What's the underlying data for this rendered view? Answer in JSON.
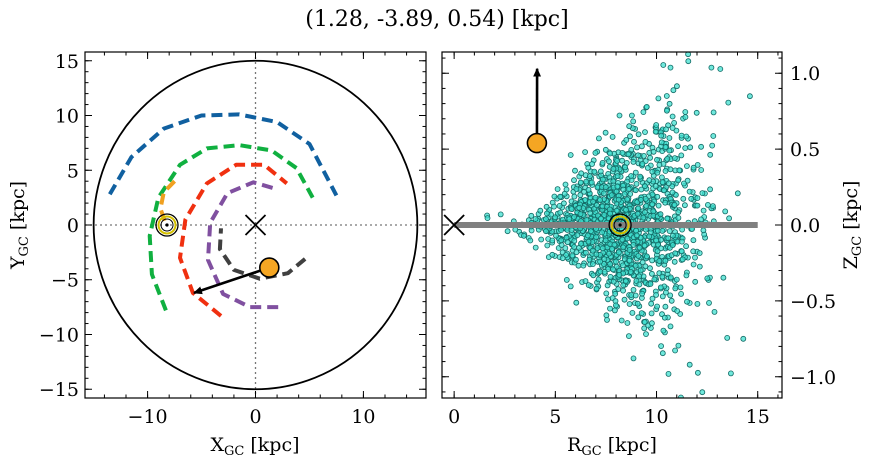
{
  "title": "(1.28, -3.89, 0.54) [kpc]",
  "chart_data": [
    {
      "type": "scatter",
      "panel": "left",
      "xlabel": "X",
      "xlabel_sub": "GC",
      "xlabel_unit": " [kpc]",
      "ylabel": "Y",
      "ylabel_sub": "GC",
      "ylabel_unit": " [kpc]",
      "xlim": [
        -15.8,
        15.8
      ],
      "ylim": [
        -15.8,
        15.8
      ],
      "xticks": [
        -10,
        0,
        10
      ],
      "yticks": [
        -15,
        -10,
        -5,
        0,
        5,
        10,
        15
      ],
      "xtick_labels": [
        "−10",
        "0",
        "10"
      ],
      "ytick_labels": [
        "−15",
        "−10",
        "−5",
        "0",
        "5",
        "10",
        "15"
      ],
      "boundary_circle_radius": 15,
      "galactic_center": [
        0,
        0
      ],
      "sun": [
        -8.2,
        0
      ],
      "object": [
        1.28,
        -3.89
      ],
      "velocity_arrow_end": [
        -5.7,
        -6.2
      ],
      "spiral_arms": [
        {
          "color": "#1060a0",
          "points": [
            [
              -13.5,
              2.8
            ],
            [
              -11.5,
              6.2
            ],
            [
              -8.5,
              8.8
            ],
            [
              -5,
              10.0
            ],
            [
              -1.5,
              10.1
            ],
            [
              2,
              9.4
            ],
            [
              5,
              7.4
            ],
            [
              7.5,
              2.7
            ]
          ]
        },
        {
          "color": "#10b040",
          "points": [
            [
              -8.3,
              -7.8
            ],
            [
              -9.6,
              -4.5
            ],
            [
              -9.8,
              -1
            ],
            [
              -9,
              2.5
            ],
            [
              -7,
              5.5
            ],
            [
              -4.5,
              7.0
            ],
            [
              -1.5,
              7.3
            ],
            [
              1.5,
              6.8
            ],
            [
              3.8,
              5.2
            ],
            [
              5.3,
              2.5
            ]
          ]
        },
        {
          "color": "#f0a020",
          "points": [
            [
              -7.5,
              4.0
            ],
            [
              -8.5,
              3.0
            ],
            [
              -8.8,
              1.5
            ],
            [
              -8.4,
              0.3
            ]
          ]
        },
        {
          "color": "#f03010",
          "points": [
            [
              -3.2,
              -8.3
            ],
            [
              -5.8,
              -6.2
            ],
            [
              -7.0,
              -3.0
            ],
            [
              -6.5,
              0.5
            ],
            [
              -4.5,
              3.8
            ],
            [
              -1.8,
              5.5
            ],
            [
              0.8,
              5.5
            ],
            [
              2.9,
              3.8
            ]
          ]
        },
        {
          "color": "#8050a0",
          "points": [
            [
              2.1,
              -7.5
            ],
            [
              -0.5,
              -7.5
            ],
            [
              -3,
              -6.3
            ],
            [
              -4.4,
              -3.2
            ],
            [
              -4.2,
              0.2
            ],
            [
              -2.6,
              2.9
            ],
            [
              -0.2,
              3.9
            ],
            [
              1.9,
              3.3
            ]
          ]
        },
        {
          "color": "#404040",
          "points": [
            [
              4.6,
              -3.1
            ],
            [
              3,
              -4.4
            ],
            [
              0.4,
              -4.9
            ],
            [
              -2,
              -4.1
            ],
            [
              -3.3,
              -2.2
            ],
            [
              -3.2,
              -0.3
            ]
          ]
        }
      ]
    },
    {
      "type": "scatter",
      "panel": "right",
      "xlabel": "R",
      "xlabel_sub": "GC",
      "xlabel_unit": " [kpc]",
      "ylabel": "Z",
      "ylabel_sub": "GC",
      "ylabel_unit": " [kpc]",
      "xlim": [
        -0.6,
        16.2
      ],
      "ylim": [
        -1.14,
        1.14
      ],
      "xticks": [
        0,
        5,
        10,
        15
      ],
      "yticks": [
        -1.0,
        -0.5,
        0.0,
        0.5,
        1.0
      ],
      "xtick_labels": [
        "0",
        "5",
        "10",
        "15"
      ],
      "ytick_labels": [
        "−1.0",
        "−0.5",
        "0.0",
        "0.5",
        "1.0"
      ],
      "disk_line": {
        "x0": 0,
        "x1": 15,
        "z": 0,
        "color": "#808080"
      },
      "galactic_center": [
        0,
        0
      ],
      "sun": [
        8.2,
        0
      ],
      "object": [
        4.09,
        0.54
      ],
      "velocity_arrow_end": [
        4.1,
        1.03
      ],
      "cloud": {
        "n_stars": 1500,
        "center_r": 8.3,
        "r_range": [
          1.6,
          15.2
        ],
        "z_range": [
          -1.14,
          1.14
        ],
        "color": "#40e0d0"
      }
    }
  ]
}
